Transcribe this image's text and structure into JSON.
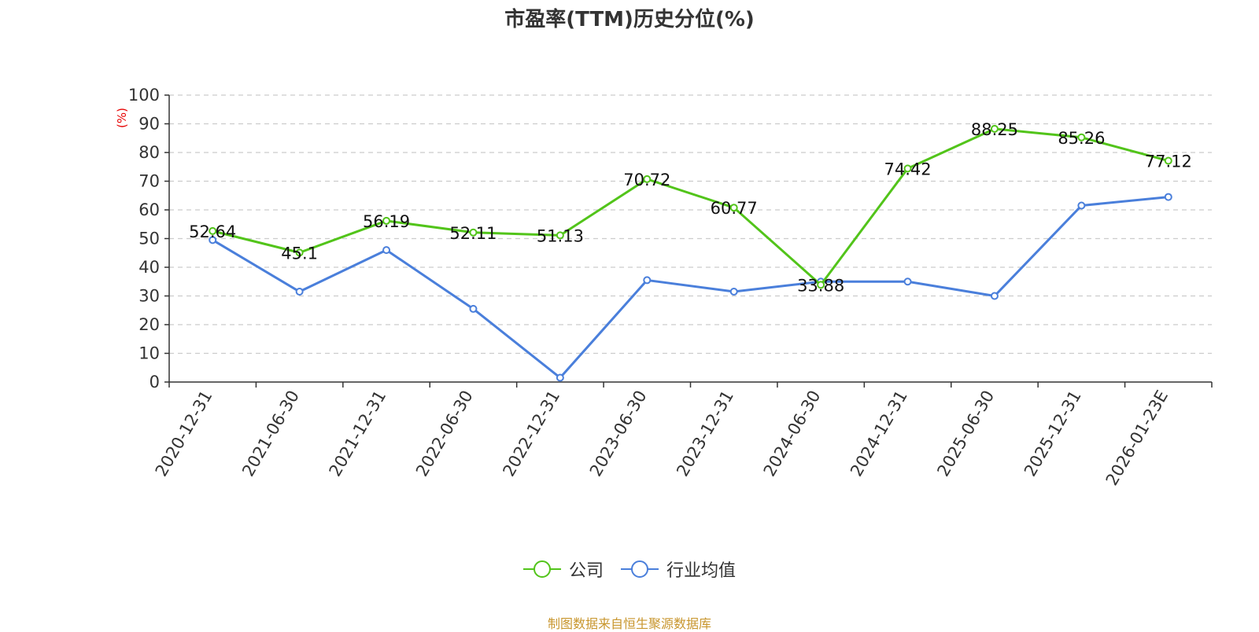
{
  "chart_data": {
    "type": "line",
    "title": "市盈率(TTM)历史分位(%)",
    "ylabel": "(%)",
    "xlabel": "",
    "ylim": [
      0,
      100
    ],
    "yticks": [
      0,
      10,
      20,
      30,
      40,
      50,
      60,
      70,
      80,
      90,
      100
    ],
    "categories": [
      "2020-12-31",
      "2021-06-30",
      "2021-12-31",
      "2022-06-30",
      "2022-12-31",
      "2023-06-30",
      "2023-12-31",
      "2024-06-30",
      "2024-12-31",
      "2025-06-30",
      "2025-12-31",
      "2026-01-23E"
    ],
    "grid": true,
    "legend_position": "bottom",
    "series": [
      {
        "name": "公司",
        "color": "#52c41a",
        "values": [
          52.64,
          45.1,
          56.19,
          52.11,
          51.13,
          70.72,
          60.77,
          33.88,
          74.42,
          88.25,
          85.26,
          77.12
        ],
        "data_labels": [
          "52.64",
          "45.1",
          "56.19",
          "52.11",
          "51.13",
          "70.72",
          "60.77",
          "33.88",
          "74.42",
          "88.25",
          "85.26",
          "77.12"
        ]
      },
      {
        "name": "行业均值",
        "color": "#4a7fdb",
        "values": [
          49.5,
          31.5,
          46.0,
          25.5,
          1.5,
          35.5,
          31.5,
          35.0,
          35.0,
          30.0,
          61.5,
          64.5
        ]
      }
    ]
  },
  "source": "制图数据来自恒生聚源数据库"
}
